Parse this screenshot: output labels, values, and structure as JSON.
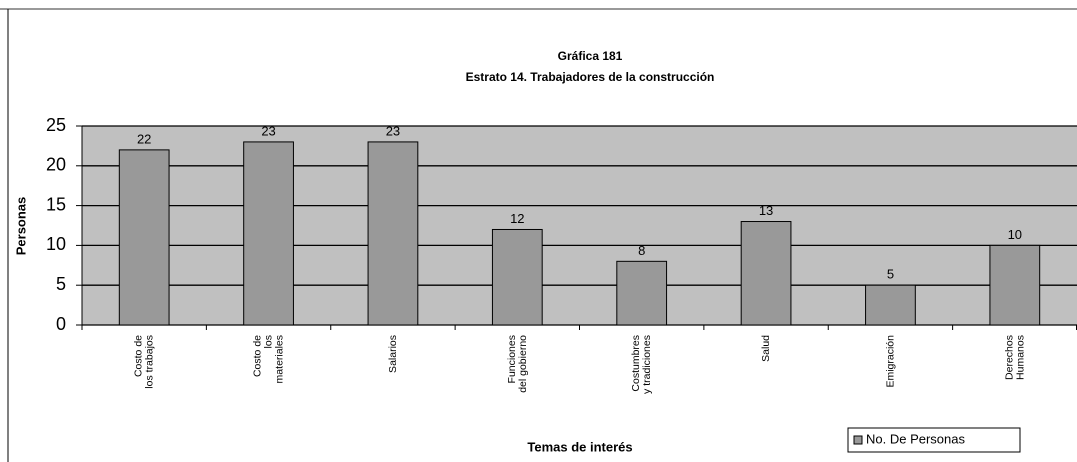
{
  "chart_data": {
    "type": "bar",
    "title": "Gráfica 181",
    "subtitle": "Estrato 14. Trabajadores de la construcción",
    "y_label": "Personas",
    "x_label": "Temas de interés",
    "categories": [
      "Costo de\nlos trabajos",
      "Costo de\nlos\nmateriales",
      "Salarios",
      "Funciones\ndel gobierno",
      "Costumbres\ny tradiciones",
      "Salud",
      "Emigración",
      "Derechos\nHumanos"
    ],
    "series": [
      {
        "name": "No. De Personas",
        "color": "#999999",
        "values": [
          22,
          23,
          23,
          12,
          8,
          13,
          5,
          10
        ]
      }
    ],
    "ylim": [
      0,
      25
    ],
    "yticks": [
      0,
      5,
      10,
      15,
      20,
      25
    ],
    "grid": true,
    "legend": "bottom-right"
  }
}
